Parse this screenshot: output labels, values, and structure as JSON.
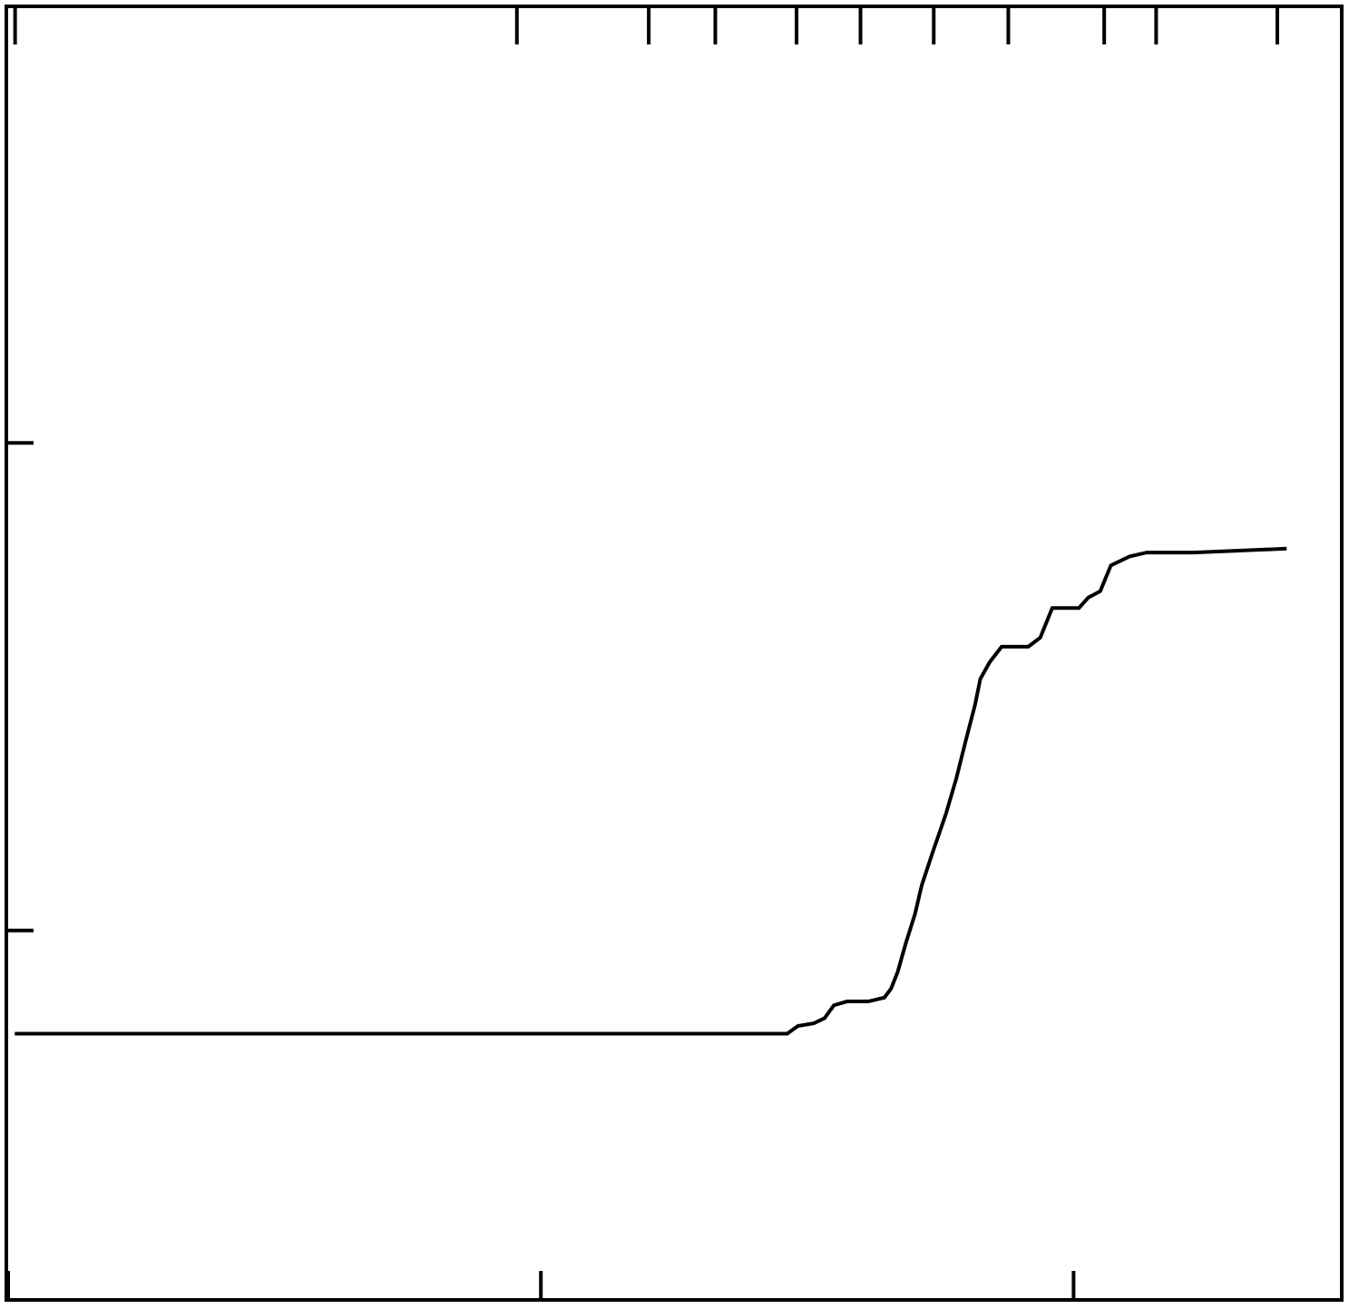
{
  "chart_data": {
    "type": "line",
    "title": "",
    "xlabel": "",
    "ylabel": "",
    "xlim": [
      0,
      100
    ],
    "ylim": [
      0,
      100
    ],
    "grid": false,
    "legend": "none",
    "bottom_ticks": [
      0,
      40,
      80
    ],
    "top_ticks": [
      0.52,
      38.2,
      48.1,
      53.1,
      59.2,
      64.0,
      69.5,
      75.1,
      82.3,
      86.2,
      95.3
    ],
    "left_ticks": [
      28.5,
      66.3
    ],
    "line_color": "#000000",
    "series": [
      {
        "values": [
          [
            0.5,
            20.5
          ],
          [
            58.5,
            20.5
          ],
          [
            59.3,
            21.1
          ],
          [
            60.5,
            21.3
          ],
          [
            61.3,
            21.7
          ],
          [
            62.0,
            22.7
          ],
          [
            63.0,
            23.0
          ],
          [
            64.6,
            23.0
          ],
          [
            65.8,
            23.3
          ],
          [
            66.3,
            24.0
          ],
          [
            66.8,
            25.3
          ],
          [
            67.4,
            27.5
          ],
          [
            68.1,
            29.8
          ],
          [
            68.6,
            32.0
          ],
          [
            69.4,
            34.5
          ],
          [
            70.4,
            37.5
          ],
          [
            71.2,
            40.3
          ],
          [
            71.9,
            43.2
          ],
          [
            72.6,
            46.0
          ],
          [
            73.0,
            48.0
          ],
          [
            73.7,
            49.3
          ],
          [
            74.6,
            50.5
          ],
          [
            76.6,
            50.5
          ],
          [
            77.5,
            51.2
          ],
          [
            78.4,
            53.5
          ],
          [
            80.4,
            53.5
          ],
          [
            81.1,
            54.3
          ],
          [
            82.0,
            54.8
          ],
          [
            82.8,
            56.8
          ],
          [
            84.2,
            57.5
          ],
          [
            85.5,
            57.8
          ],
          [
            89.0,
            57.8
          ],
          [
            96.0,
            58.1
          ]
        ]
      }
    ]
  }
}
